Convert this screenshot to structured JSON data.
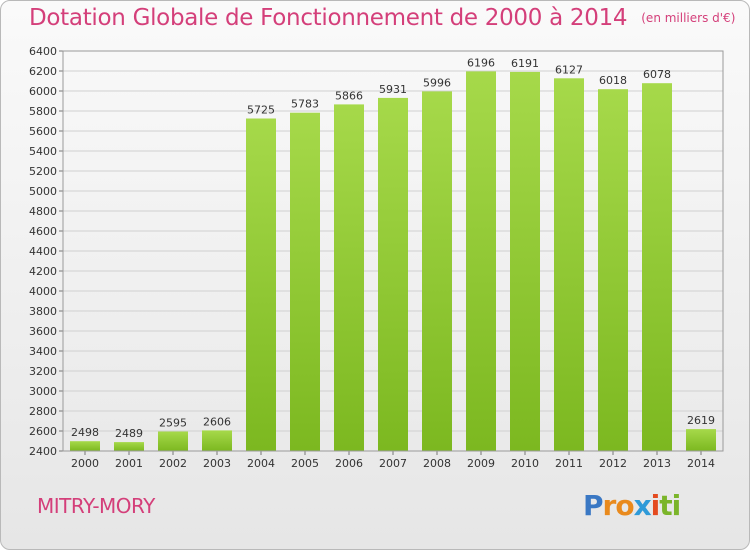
{
  "chart_data": {
    "type": "bar",
    "title": "Dotation Globale de Fonctionnement de 2000 à 2014",
    "unit_note": "(en milliers d'€)",
    "categories": [
      "2000",
      "2001",
      "2002",
      "2003",
      "2004",
      "2005",
      "2006",
      "2007",
      "2008",
      "2009",
      "2010",
      "2011",
      "2012",
      "2013",
      "2014"
    ],
    "values": [
      2498,
      2489,
      2595,
      2606,
      5725,
      5783,
      5866,
      5931,
      5996,
      6196,
      6191,
      6127,
      6018,
      6078,
      2619
    ],
    "ylim": [
      2400,
      6400
    ],
    "ytick_step": 200,
    "grid": true,
    "bar_color": "#7cb820",
    "bar_color_light": "#a6d94a",
    "xlabel": "",
    "ylabel": ""
  },
  "commune": "MITRY-MORY",
  "logo": {
    "letters": [
      "P",
      "r",
      "o",
      "x",
      "i",
      "t",
      "i"
    ],
    "colors": [
      "#3a78c4",
      "#e98a1d",
      "#e98a1d",
      "#2f9ad8",
      "#e44b20",
      "#7bb52a",
      "#7bb52a"
    ]
  }
}
